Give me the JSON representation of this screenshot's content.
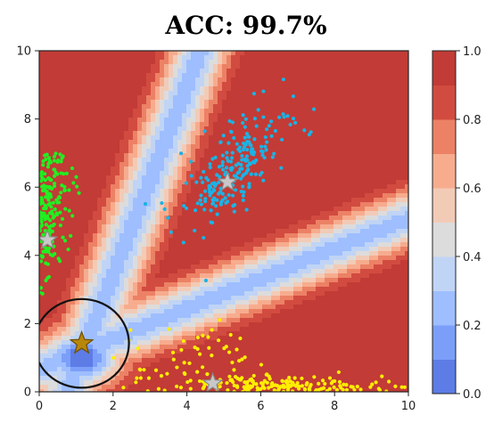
{
  "chart_data": {
    "type": "scatter",
    "title": "ACC: 99.7%",
    "xlabel": "",
    "ylabel": "",
    "xlim": [
      0,
      10
    ],
    "ylim": [
      0,
      10
    ],
    "xticks": [
      "0",
      "2",
      "4",
      "6",
      "8",
      "10"
    ],
    "yticks": [
      "0",
      "2",
      "4",
      "6",
      "8",
      "10"
    ],
    "grid": false,
    "colorbar": {
      "range": [
        0.0,
        1.0
      ],
      "ticks": [
        "0.0",
        "0.2",
        "0.4",
        "0.6",
        "0.8",
        "1.0"
      ],
      "colormap": "coolwarm",
      "levels": [
        0.0,
        0.1,
        0.2,
        0.3,
        0.4,
        0.5,
        0.6,
        0.7,
        0.8,
        0.9,
        1.0
      ],
      "colors": [
        "#5d7ce6",
        "#7b9ff9",
        "#9ebeff",
        "#c0d4f5",
        "#dddcdc",
        "#f2cbb7",
        "#f7ac8e",
        "#ec8165",
        "#d24b40",
        "#c23b36"
      ]
    },
    "background_contour": "classifier probability, high (~1.0) everywhere except low-valued bands along three cluster directions, lowest near (1.2, 1.2)",
    "series": [
      {
        "color": "#1ab3e6",
        "center": [
          5.3,
          6.6
        ],
        "direction": "diagonal up-right",
        "x_range": [
          2.5,
          8.2
        ],
        "y_range": [
          2.3,
          9.6
        ]
      },
      {
        "color": "#ffee00",
        "center": [
          6.0,
          0.3
        ],
        "direction": "along x-axis",
        "x_range": [
          2.0,
          10.0
        ],
        "y_range": [
          0.0,
          2.6
        ]
      },
      {
        "color": "#22ee22",
        "center": [
          0.3,
          5.6
        ],
        "direction": "along y-axis",
        "x_range": [
          0.0,
          2.7
        ],
        "y_range": [
          2.5,
          7.0
        ]
      }
    ],
    "centroids": [
      {
        "x": 5.1,
        "y": 6.15,
        "color": "#c8c8c8"
      },
      {
        "x": 4.7,
        "y": 0.25,
        "color": "#c8c8c8"
      },
      {
        "x": 0.22,
        "y": 4.45,
        "color": "#c8c8c8"
      },
      {
        "x": 1.15,
        "y": 1.42,
        "color": "#b8860b"
      }
    ],
    "circle": {
      "cx": 1.15,
      "cy": 1.42,
      "rx": 1.28,
      "ry": 1.3,
      "color": "#111111"
    }
  }
}
